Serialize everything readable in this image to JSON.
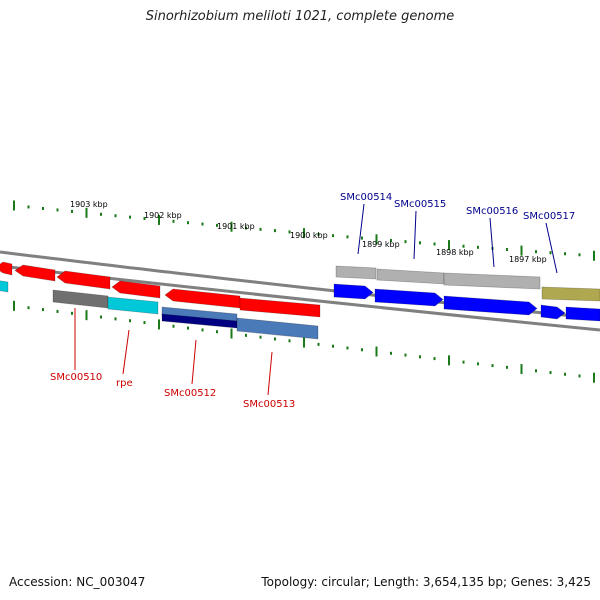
{
  "title": "Sinorhizobium meliloti 1021, complete genome",
  "footer": {
    "accession": "Accession: NC_003047",
    "summary": "Topology: circular; Length: 3,654,135 bp; Genes: 3,425"
  },
  "scale": {
    "tick_color": "#1a7a1a",
    "labels": [
      "1903 kbp",
      "1902 kbp",
      "1901 kbp",
      "1900 kbp",
      "1899 kbp",
      "1898 kbp",
      "1897 kbp"
    ]
  },
  "backbone_color": "#808080",
  "gene_labels": {
    "forward": [
      "SMc00514",
      "SMc00515",
      "SMc00516",
      "SMc00517"
    ],
    "reverse": [
      "SMc00510",
      "rpe",
      "SMc00512",
      "SMc00513"
    ],
    "forward_color": "#00008b",
    "reverse_color": "#cc0000"
  },
  "colors": {
    "red": "#ff0000",
    "cyan": "#00c8d8",
    "blue": "#0000ff",
    "grey_feature": "#b0b0b0",
    "dark_grey": "#707070",
    "olive": "#b0a850",
    "navy": "#000080",
    "steel_blue": "#4a7ab8"
  }
}
